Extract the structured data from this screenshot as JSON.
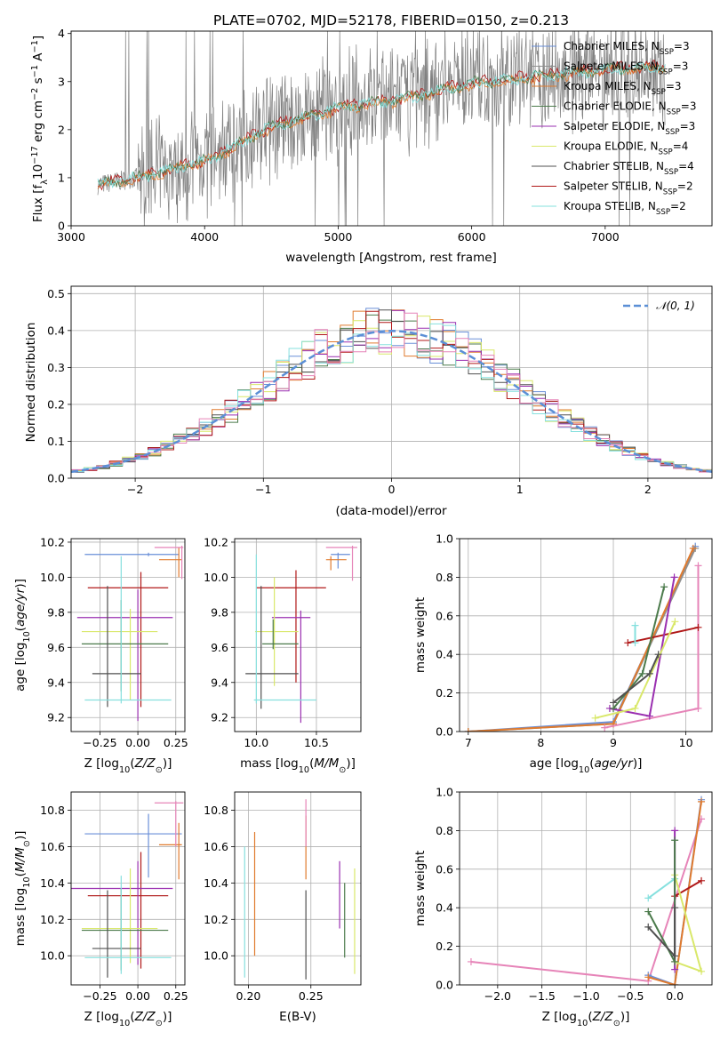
{
  "colors": {
    "Chabrier MILES": "#6a8fd8",
    "Salpeter MILES": "#909090",
    "Kroupa MILES": "#e07b2e",
    "Chabrier ELODIE": "#4b7a4b",
    "Salpeter ELODIE": "#9a2fb0",
    "Kroupa ELODIE": "#d9e86a",
    "Chabrier STELIB": "#505050",
    "Salpeter STELIB": "#b01818",
    "Kroupa STELIB": "#86e0de",
    "extra": "#e684b8"
  },
  "chart_data": [
    {
      "id": "spectrum",
      "type": "line",
      "title": "PLATE=0702, MJD=52178, FIBERID=0150, z=0.213",
      "xlabel": "wavelength [Angstrom, rest frame]",
      "ylabel": "Flux [f_λ 10^-17 erg cm^-2 s^-1 A^-1]",
      "xlim": [
        3000,
        7800
      ],
      "ylim": [
        0,
        4.05
      ],
      "xticks": [
        3000,
        4000,
        5000,
        6000,
        7000
      ],
      "yticks": [
        0,
        1,
        2,
        3,
        4
      ],
      "grid": false,
      "legend_position": "top-right",
      "legend": [
        {
          "model": "Chabrier MILES",
          "nssp": "3"
        },
        {
          "model": "Salpeter MILES",
          "nssp": "3"
        },
        {
          "model": "Kroupa MILES",
          "nssp": "3"
        },
        {
          "model": "Chabrier ELODIE",
          "nssp": "3"
        },
        {
          "model": "Salpeter ELODIE",
          "nssp": "3"
        },
        {
          "model": "Kroupa ELODIE",
          "nssp": "4"
        },
        {
          "model": "Chabrier STELIB",
          "nssp": "4"
        },
        {
          "model": "Salpeter STELIB",
          "nssp": "2"
        },
        {
          "model": "Kroupa STELIB",
          "nssp": "2"
        }
      ],
      "continuum_x": [
        3200,
        3500,
        4000,
        4500,
        5000,
        5500,
        6000,
        6500,
        7000,
        7400
      ],
      "continuum_y": [
        0.85,
        1.0,
        1.35,
        2.05,
        2.45,
        2.65,
        2.95,
        3.1,
        3.25,
        3.3
      ]
    },
    {
      "id": "residuals",
      "type": "histogram",
      "xlabel": "(data-model)/error",
      "ylabel": "Normed distribution",
      "xlim": [
        -2.5,
        2.5
      ],
      "ylim": [
        0,
        0.52
      ],
      "xticks": [
        -2,
        -1,
        0,
        1,
        2
      ],
      "yticks": [
        0.0,
        0.1,
        0.2,
        0.3,
        0.4,
        0.5
      ],
      "grid": true,
      "legend_position": "top-right",
      "reference_curve": "𝒩(0, 1)"
    },
    {
      "id": "age_vs_Z",
      "type": "errorbar",
      "xlabel": "Z [log10(Z/Z⊙)]",
      "ylabel": "age [log10(age/yr)]",
      "xlim": [
        -0.44,
        0.31
      ],
      "ylim": [
        9.12,
        10.22
      ],
      "xticks": [
        -0.25,
        0.0,
        0.25
      ],
      "yticks": [
        9.2,
        9.4,
        9.6,
        9.8,
        10.0,
        10.2
      ],
      "points": [
        {
          "c": "Chabrier MILES",
          "x": 0.07,
          "xl": -0.35,
          "xh": 0.27,
          "y": 10.13,
          "yl": 10.12,
          "yh": 10.14
        },
        {
          "c": "Kroupa MILES",
          "x": 0.27,
          "xl": 0.14,
          "xh": 0.29,
          "y": 10.1,
          "yl": 10.0,
          "yh": 10.17
        },
        {
          "c": "extra",
          "x": 0.29,
          "xl": 0.11,
          "xh": 0.3,
          "y": 10.17,
          "yl": 9.99,
          "yh": 10.18
        },
        {
          "c": "Salpeter STELIB",
          "x": 0.02,
          "xl": -0.33,
          "xh": 0.2,
          "y": 9.94,
          "yl": 9.26,
          "yh": 10.03
        },
        {
          "c": "Salpeter ELODIE",
          "x": 0.0,
          "xl": -0.4,
          "xh": 0.23,
          "y": 9.77,
          "yl": 9.18,
          "yh": 9.93
        },
        {
          "c": "Kroupa ELODIE",
          "x": -0.05,
          "xl": -0.37,
          "xh": 0.13,
          "y": 9.69,
          "yl": 9.3,
          "yh": 9.82
        },
        {
          "c": "Chabrier ELODIE",
          "x": -0.11,
          "xl": -0.37,
          "xh": 0.2,
          "y": 9.62,
          "yl": 9.35,
          "yh": 9.87
        },
        {
          "c": "Chabrier STELIB",
          "x": -0.2,
          "xl": -0.3,
          "xh": 0.02,
          "y": 9.45,
          "yl": 9.26,
          "yh": 9.95
        },
        {
          "c": "Kroupa STELIB",
          "x": -0.11,
          "xl": -0.35,
          "xh": 0.22,
          "y": 9.3,
          "yl": 9.28,
          "yh": 10.12
        }
      ]
    },
    {
      "id": "age_vs_mass",
      "type": "errorbar",
      "xlabel": "mass [log10(M/M⊙)]",
      "ylabel": "",
      "xlim": [
        9.82,
        10.87
      ],
      "ylim": [
        9.12,
        10.22
      ],
      "xticks": [
        10.0,
        10.5
      ],
      "yticks": [
        9.2,
        9.4,
        9.6,
        9.8,
        10.0,
        10.2
      ],
      "points": [
        {
          "c": "Chabrier MILES",
          "x": 10.68,
          "xl": 10.62,
          "xh": 10.78,
          "y": 10.13,
          "yl": 10.05,
          "yh": 10.14
        },
        {
          "c": "Kroupa MILES",
          "x": 10.62,
          "xl": 10.58,
          "xh": 10.75,
          "y": 10.1,
          "yl": 10.04,
          "yh": 10.12
        },
        {
          "c": "extra",
          "x": 10.8,
          "xl": 10.58,
          "xh": 10.84,
          "y": 10.17,
          "yl": 9.98,
          "yh": 10.18
        },
        {
          "c": "Salpeter STELIB",
          "x": 10.33,
          "xl": 10.0,
          "xh": 10.58,
          "y": 9.94,
          "yl": 9.4,
          "yh": 10.04
        },
        {
          "c": "Salpeter ELODIE",
          "x": 10.37,
          "xl": 10.13,
          "xh": 10.45,
          "y": 9.77,
          "yl": 9.17,
          "yh": 9.81
        },
        {
          "c": "Kroupa ELODIE",
          "x": 10.15,
          "xl": 9.99,
          "xh": 10.35,
          "y": 9.69,
          "yl": 9.38,
          "yh": 10.0
        },
        {
          "c": "Chabrier ELODIE",
          "x": 10.14,
          "xl": 10.05,
          "xh": 10.35,
          "y": 9.62,
          "yl": 9.59,
          "yh": 9.76
        },
        {
          "c": "Chabrier STELIB",
          "x": 10.04,
          "xl": 9.91,
          "xh": 10.35,
          "y": 9.45,
          "yl": 9.25,
          "yh": 9.95
        },
        {
          "c": "Kroupa STELIB",
          "x": 10.0,
          "xl": 9.98,
          "xh": 10.5,
          "y": 9.3,
          "yl": 9.28,
          "yh": 10.13
        }
      ]
    },
    {
      "id": "massweight_vs_age",
      "type": "line",
      "xlabel": "age [log10(age/yr)]",
      "ylabel": "mass weight",
      "xlim": [
        6.88,
        10.36
      ],
      "ylim": [
        0,
        1.0
      ],
      "xticks": [
        7,
        8,
        9,
        10
      ],
      "yticks": [
        0.0,
        0.2,
        0.4,
        0.6,
        0.8,
        1.0
      ],
      "series": [
        {
          "c": "Chabrier MILES",
          "x": [
            7.0,
            9.0,
            10.13
          ],
          "y": [
            0.0,
            0.05,
            0.96
          ]
        },
        {
          "c": "Salpeter MILES",
          "x": [
            7.0,
            9.0,
            10.13
          ],
          "y": [
            0.0,
            0.04,
            0.95
          ]
        },
        {
          "c": "Kroupa MILES",
          "x": [
            7.0,
            9.0,
            10.1
          ],
          "y": [
            0.0,
            0.04,
            0.95
          ]
        },
        {
          "c": "extra",
          "x": [
            8.88,
            10.17,
            10.17
          ],
          "y": [
            0.02,
            0.12,
            0.86
          ]
        },
        {
          "c": "Salpeter STELIB",
          "x": [
            9.2,
            10.17
          ],
          "y": [
            0.46,
            0.54
          ]
        },
        {
          "c": "Kroupa STELIB",
          "x": [
            9.3,
            9.3
          ],
          "y": [
            0.46,
            0.55
          ]
        },
        {
          "c": "Salpeter ELODIE",
          "x": [
            8.95,
            9.5,
            9.84
          ],
          "y": [
            0.12,
            0.08,
            0.8
          ]
        },
        {
          "c": "Kroupa ELODIE",
          "x": [
            8.75,
            9.3,
            9.85
          ],
          "y": [
            0.07,
            0.12,
            0.57
          ]
        },
        {
          "c": "Chabrier ELODIE",
          "x": [
            9.0,
            9.4,
            9.7
          ],
          "y": [
            0.12,
            0.3,
            0.75
          ]
        },
        {
          "c": "Chabrier STELIB",
          "x": [
            9.0,
            9.5,
            9.62
          ],
          "y": [
            0.15,
            0.3,
            0.4
          ]
        }
      ]
    },
    {
      "id": "mass_vs_Z",
      "type": "errorbar",
      "xlabel": "Z [log10(Z/Z⊙)]",
      "ylabel": "mass [log10(M/M⊙)]",
      "xlim": [
        -0.44,
        0.31
      ],
      "ylim": [
        9.84,
        10.9
      ],
      "xticks": [
        -0.25,
        0.0,
        0.25
      ],
      "yticks": [
        10.0,
        10.2,
        10.4,
        10.6,
        10.8
      ],
      "points": [
        {
          "c": "Chabrier MILES",
          "x": 0.07,
          "xl": -0.35,
          "xh": 0.29,
          "y": 10.67,
          "yl": 10.43,
          "yh": 10.78
        },
        {
          "c": "Kroupa MILES",
          "x": 0.27,
          "xl": 0.14,
          "xh": 0.29,
          "y": 10.61,
          "yl": 10.42,
          "yh": 10.73
        },
        {
          "c": "extra",
          "x": 0.25,
          "xl": 0.11,
          "xh": 0.3,
          "y": 10.84,
          "yl": 10.6,
          "yh": 10.85
        },
        {
          "c": "Salpeter STELIB",
          "x": 0.02,
          "xl": -0.33,
          "xh": 0.2,
          "y": 10.33,
          "yl": 9.93,
          "yh": 10.57
        },
        {
          "c": "Salpeter ELODIE",
          "x": 0.0,
          "xl": -0.44,
          "xh": 0.23,
          "y": 10.37,
          "yl": 9.95,
          "yh": 10.52
        },
        {
          "c": "Kroupa ELODIE",
          "x": -0.05,
          "xl": -0.37,
          "xh": 0.13,
          "y": 10.15,
          "yl": 9.96,
          "yh": 10.48
        },
        {
          "c": "Chabrier ELODIE",
          "x": -0.11,
          "xl": -0.37,
          "xh": 0.2,
          "y": 10.14,
          "yl": 9.92,
          "yh": 10.37
        },
        {
          "c": "Chabrier STELIB",
          "x": -0.2,
          "xl": -0.3,
          "xh": 0.02,
          "y": 10.04,
          "yl": 9.88,
          "yh": 10.36
        },
        {
          "c": "Kroupa STELIB",
          "x": -0.11,
          "xl": -0.35,
          "xh": 0.22,
          "y": 9.99,
          "yl": 9.9,
          "yh": 10.44
        }
      ]
    },
    {
      "id": "mass_vs_EBV",
      "type": "errorbar",
      "xlabel": "E(B-V)",
      "ylabel": "",
      "xlim": [
        0.189,
        0.29
      ],
      "ylim": [
        9.84,
        10.9
      ],
      "xticks": [
        0.2,
        0.25
      ],
      "yticks": [
        10.0,
        10.2,
        10.4,
        10.6,
        10.8
      ],
      "points": [
        {
          "c": "Kroupa STELIB",
          "x": 0.197,
          "xl": 0.197,
          "xh": 0.197,
          "y": 10.2,
          "yl": 9.88,
          "yh": 10.6
        },
        {
          "c": "Kroupa MILES",
          "x": 0.205,
          "xl": 0.205,
          "xh": 0.205,
          "y": 10.3,
          "yl": 10.0,
          "yh": 10.68
        },
        {
          "c": "Chabrier STELIB",
          "x": 0.246,
          "xl": 0.246,
          "xh": 0.246,
          "y": 10.1,
          "yl": 9.87,
          "yh": 10.36
        },
        {
          "c": "Kroupa MILES",
          "x": 0.246,
          "xl": 0.246,
          "xh": 0.246,
          "y": 10.6,
          "yl": 10.42,
          "yh": 10.77
        },
        {
          "c": "extra",
          "x": 0.246,
          "xl": 0.246,
          "xh": 0.246,
          "y": 10.75,
          "yl": 10.6,
          "yh": 10.86
        },
        {
          "c": "Salpeter ELODIE",
          "x": 0.273,
          "xl": 0.273,
          "xh": 0.273,
          "y": 10.3,
          "yl": 10.15,
          "yh": 10.52
        },
        {
          "c": "Chabrier ELODIE",
          "x": 0.277,
          "xl": 0.277,
          "xh": 0.277,
          "y": 10.2,
          "yl": 9.99,
          "yh": 10.4
        },
        {
          "c": "Kroupa ELODIE",
          "x": 0.285,
          "xl": 0.285,
          "xh": 0.285,
          "y": 10.2,
          "yl": 9.9,
          "yh": 10.48
        }
      ]
    },
    {
      "id": "massweight_vs_Z",
      "type": "line",
      "xlabel": "Z [log10(Z/Z⊙)]",
      "ylabel": "mass weight",
      "xlim": [
        -2.43,
        0.42
      ],
      "ylim": [
        0,
        1.0
      ],
      "xticks": [
        -2.0,
        -1.5,
        -1.0,
        -0.5,
        0.0
      ],
      "yticks": [
        0.0,
        0.2,
        0.4,
        0.6,
        0.8,
        1.0
      ],
      "series": [
        {
          "c": "extra",
          "x": [
            -2.3,
            -0.3,
            0.3
          ],
          "y": [
            0.12,
            0.02,
            0.86
          ]
        },
        {
          "c": "Chabrier MILES",
          "x": [
            -0.3,
            0.0,
            0.3
          ],
          "y": [
            0.05,
            0.0,
            0.96
          ]
        },
        {
          "c": "Kroupa MILES",
          "x": [
            -0.3,
            0.0,
            0.3
          ],
          "y": [
            0.04,
            0.0,
            0.95
          ]
        },
        {
          "c": "Salpeter STELIB",
          "x": [
            0.0,
            0.3
          ],
          "y": [
            0.46,
            0.54
          ]
        },
        {
          "c": "Kroupa STELIB",
          "x": [
            -0.3,
            0.0
          ],
          "y": [
            0.45,
            0.55
          ]
        },
        {
          "c": "Salpeter ELODIE",
          "x": [
            0.0,
            0.0,
            0.0
          ],
          "y": [
            0.8,
            0.12,
            0.08
          ]
        },
        {
          "c": "Kroupa ELODIE",
          "x": [
            0.0,
            0.3,
            0.0
          ],
          "y": [
            0.57,
            0.07,
            0.12
          ]
        },
        {
          "c": "Chabrier ELODIE",
          "x": [
            -0.3,
            0.0,
            0.0
          ],
          "y": [
            0.38,
            0.12,
            0.75
          ]
        },
        {
          "c": "Chabrier STELIB",
          "x": [
            -0.3,
            0.0,
            0.0
          ],
          "y": [
            0.3,
            0.15,
            0.4
          ]
        }
      ]
    }
  ]
}
